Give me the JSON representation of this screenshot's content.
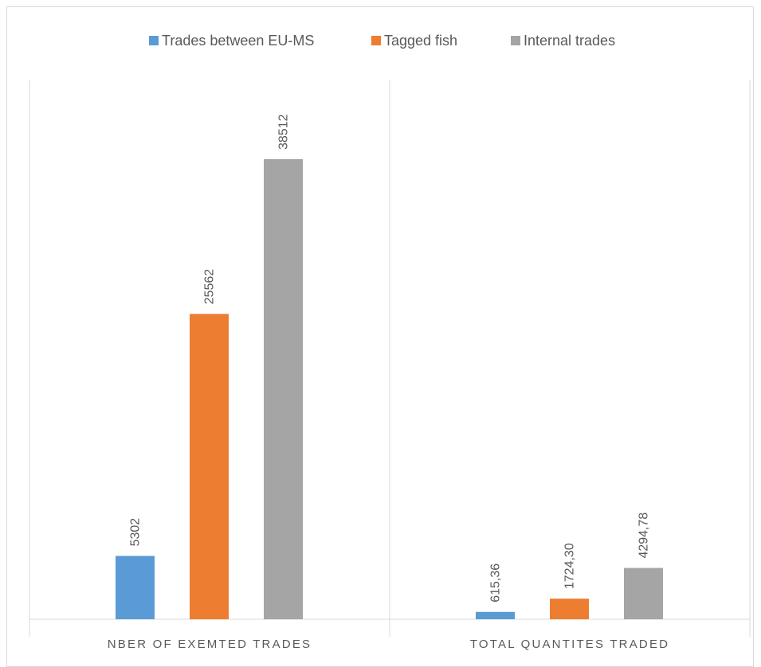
{
  "chart_data": {
    "type": "bar",
    "categories": [
      "NBER OF EXEMTED TRADES",
      "TOTAL QUANTITES TRADED"
    ],
    "series": [
      {
        "name": "Trades between EU-MS",
        "color": "#5b9bd5",
        "values": [
          5302,
          615.36
        ],
        "labels": [
          "5302",
          "615,36"
        ]
      },
      {
        "name": "Tagged fish",
        "color": "#ed7d31",
        "values": [
          25562,
          1724.3
        ],
        "labels": [
          "25562",
          "1724,30"
        ]
      },
      {
        "name": "Internal trades",
        "color": "#a5a5a5",
        "values": [
          38512,
          4294.78
        ],
        "labels": [
          "38512",
          "4294,78"
        ]
      }
    ],
    "ylim": [
      0,
      38512
    ],
    "legend": "top",
    "grid": false
  }
}
